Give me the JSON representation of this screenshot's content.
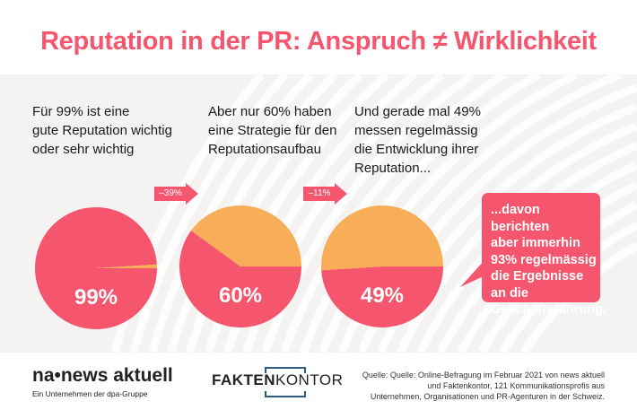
{
  "title": "Reputation in der PR: Anspruch ≠ Wirklichkeit",
  "colors": {
    "accent": "#f5566e",
    "secondary": "#f8ad58",
    "band": "#f4f3f2"
  },
  "statements": [
    "Für 99% ist eine\ngute Reputation wichtig\noder sehr wichtig",
    "Aber nur 60% haben\neine Strategie für den\nReputationsaufbau",
    "Und gerade mal 49%\nmessen regelmässig\ndie Entwicklung ihrer\nReputation..."
  ],
  "arrows": [
    "–39%",
    "–11%"
  ],
  "bubble": "...davon berichten\naber immerhin\n93% regelmässig\ndie Ergebnisse\nan die\nGeschäftsführung.",
  "chart_data": [
    {
      "type": "pie",
      "values": [
        99,
        1
      ],
      "label": "99%"
    },
    {
      "type": "pie",
      "values": [
        60,
        40
      ],
      "label": "60%"
    },
    {
      "type": "pie",
      "values": [
        49,
        51
      ],
      "label": "49%"
    }
  ],
  "footer": {
    "logo_na": "na•news aktuell",
    "logo_na_sub": "Ein Unternehmen der dpa-Gruppe",
    "logo_fk_bold": "FAKTEN",
    "logo_fk_light": "KONTOR",
    "source": "Quelle: Quelle: Online-Befragung im Februar 2021 von news aktuell\nund Faktenkontor, 121 Kommunikationsprofis aus\nUnternehmen, Organisationen und PR-Agenturen in der Schweiz."
  }
}
